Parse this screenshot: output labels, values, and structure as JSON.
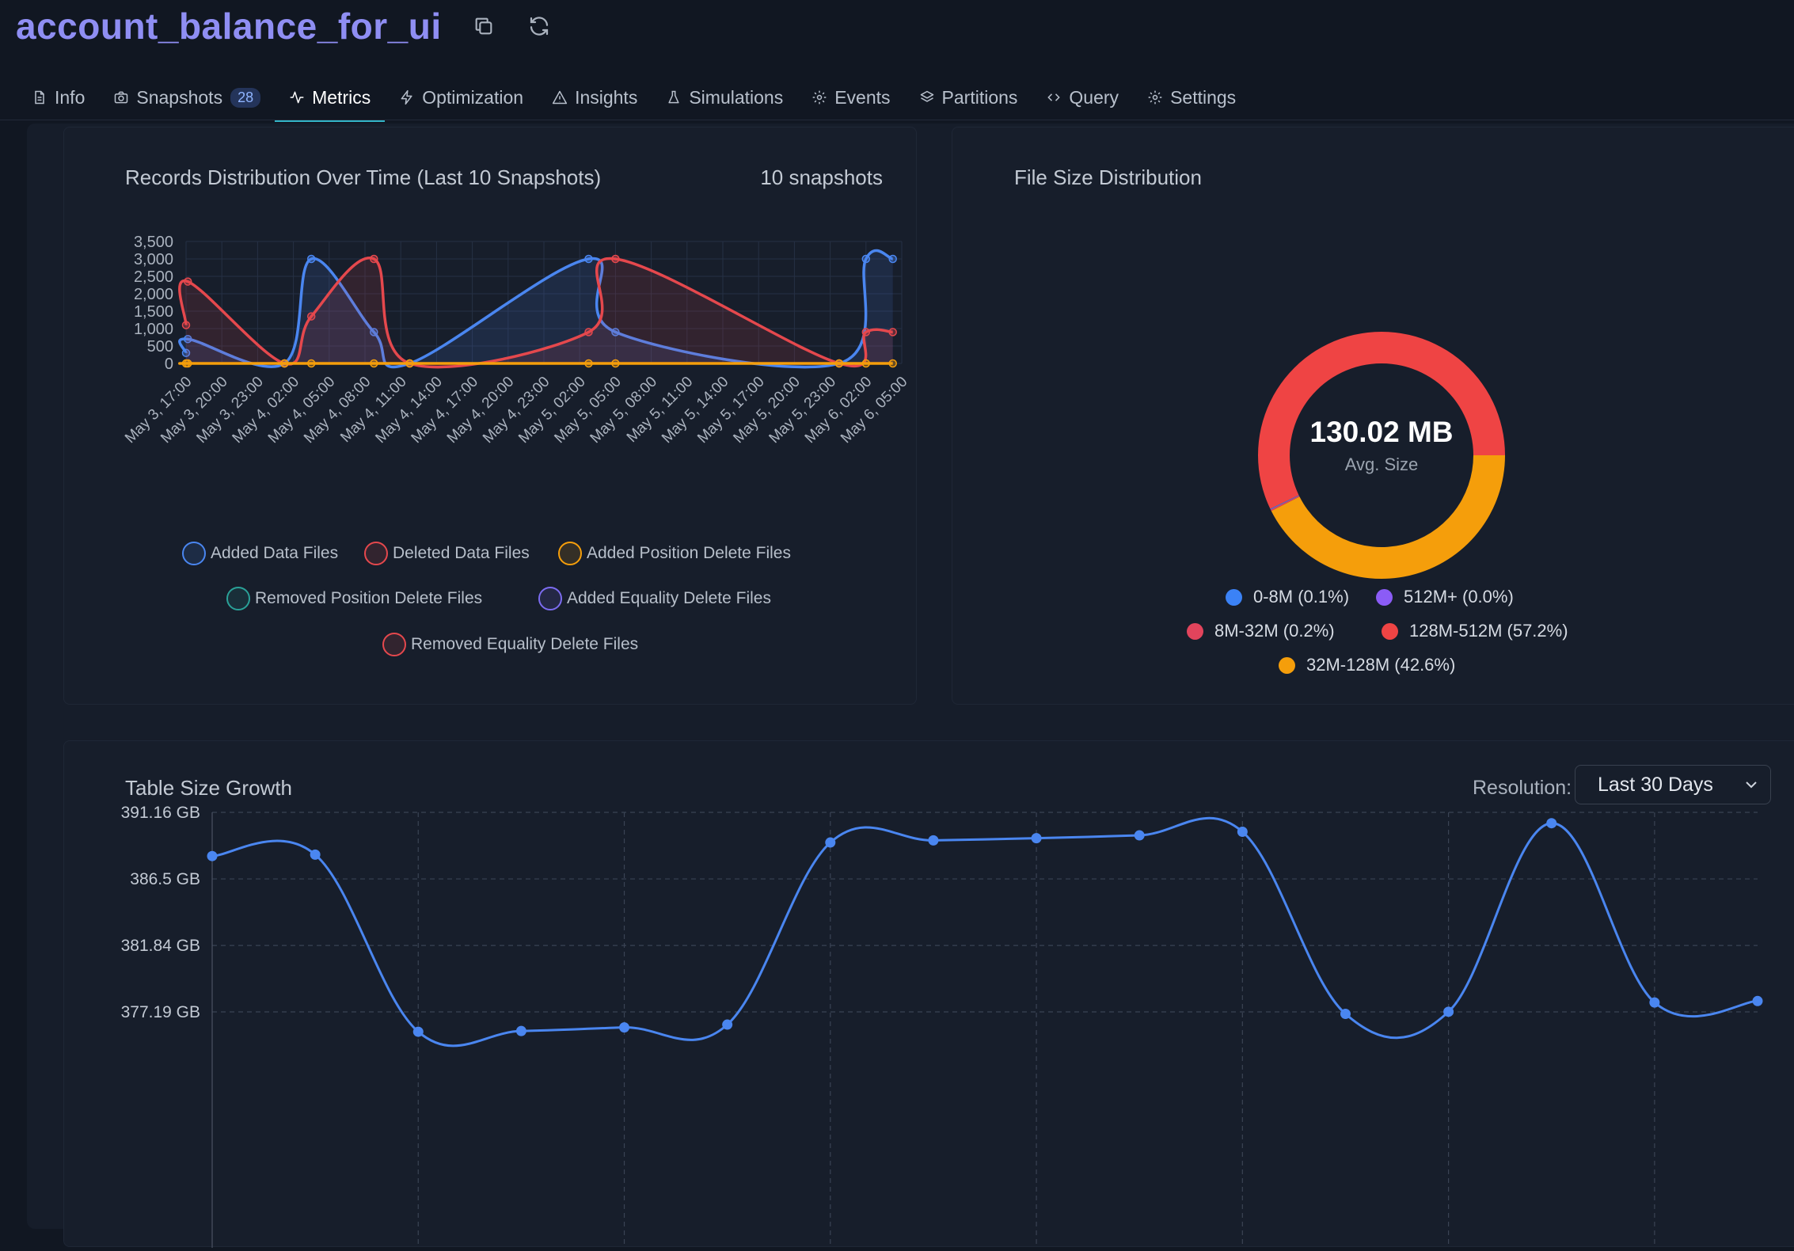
{
  "header": {
    "title": "account_balance_for_ui",
    "copy_icon": "copy-icon",
    "refresh_icon": "refresh-icon"
  },
  "tabs": [
    {
      "label": "Info",
      "icon": "document-icon"
    },
    {
      "label": "Snapshots",
      "icon": "camera-icon",
      "badge": "28"
    },
    {
      "label": "Metrics",
      "icon": "activity-icon",
      "active": true
    },
    {
      "label": "Optimization",
      "icon": "lightning-icon"
    },
    {
      "label": "Insights",
      "icon": "warning-icon"
    },
    {
      "label": "Simulations",
      "icon": "flask-icon"
    },
    {
      "label": "Events",
      "icon": "gear-icon"
    },
    {
      "label": "Partitions",
      "icon": "layers-icon"
    },
    {
      "label": "Query",
      "icon": "code-icon"
    },
    {
      "label": "Settings",
      "icon": "gear-icon"
    }
  ],
  "records_card": {
    "title": "Records Distribution Over Time (Last 10 Snapshots)",
    "meta": "10 snapshots"
  },
  "filesize_card": {
    "title": "File Size Distribution",
    "center_value": "130.02 MB",
    "center_label": "Avg. Size"
  },
  "growth_card": {
    "title": "Table Size Growth",
    "resolution_label": "Resolution:",
    "resolution_value": "Last 30 Days"
  },
  "colors": {
    "added_data": "#4a86f0",
    "deleted_data": "#e5484d",
    "added_position_delete": "#f59e0b",
    "removed_position_delete": "#2aa198",
    "added_equality_delete": "#7c6cf0",
    "removed_equality_delete": "#e5484d",
    "pie_0_8": "#3b82f6",
    "pie_512": "#8b5cf6",
    "pie_8_32": "#e2445c",
    "pie_128_512": "#ef4444",
    "pie_32_128": "#f59e0b",
    "growth_line": "#4a86f0"
  },
  "chart_data": [
    {
      "type": "line",
      "title": "Records Distribution Over Time (Last 10 Snapshots)",
      "x_tick_labels": [
        "May 3, 17:00",
        "May 3, 20:00",
        "May 3, 23:00",
        "May 4, 02:00",
        "May 4, 05:00",
        "May 4, 08:00",
        "May 4, 11:00",
        "May 4, 14:00",
        "May 4, 17:00",
        "May 4, 20:00",
        "May 4, 23:00",
        "May 5, 02:00",
        "May 5, 05:00",
        "May 5, 08:00",
        "May 5, 11:00",
        "May 5, 14:00",
        "May 5, 17:00",
        "May 5, 20:00",
        "May 5, 23:00",
        "May 6, 02:00",
        "May 6, 05:00"
      ],
      "y_ticks": [
        "0",
        "500",
        "1,000",
        "1,500",
        "2,000",
        "2,500",
        "3,000",
        "3,500"
      ],
      "ylim": [
        0,
        3500
      ],
      "grid": true,
      "legend_position": "bottom",
      "x_hours": [
        0,
        0.2,
        11,
        14,
        21,
        25,
        45,
        48,
        73,
        76,
        79
      ],
      "series": [
        {
          "name": "Added Data Files",
          "color_key": "added_data",
          "fill": true,
          "values": [
            300,
            700,
            0,
            3000,
            900,
            0,
            3000,
            900,
            0,
            3000,
            3000
          ]
        },
        {
          "name": "Deleted Data Files",
          "color_key": "deleted_data",
          "fill": true,
          "values": [
            1100,
            2350,
            0,
            1350,
            3000,
            0,
            900,
            3000,
            0,
            900,
            900
          ]
        },
        {
          "name": "Added Position Delete Files",
          "color_key": "added_position_delete",
          "fill": false,
          "values": [
            0,
            0,
            0,
            0,
            0,
            0,
            0,
            0,
            0,
            0,
            0
          ]
        },
        {
          "name": "Removed Position Delete Files",
          "color_key": "removed_position_delete",
          "fill": false,
          "values": []
        },
        {
          "name": "Added Equality Delete Files",
          "color_key": "added_equality_delete",
          "fill": false,
          "values": []
        },
        {
          "name": "Removed Equality Delete Files",
          "color_key": "removed_equality_delete",
          "fill": false,
          "values": []
        }
      ]
    },
    {
      "type": "pie",
      "title": "File Size Distribution",
      "slices": [
        {
          "label": "0-8M (0.1%)",
          "value": 0.1,
          "color_key": "pie_0_8"
        },
        {
          "label": "512M+ (0.0%)",
          "value": 0.0,
          "color_key": "pie_512"
        },
        {
          "label": "8M-32M (0.2%)",
          "value": 0.2,
          "color_key": "pie_8_32"
        },
        {
          "label": "128M-512M (57.2%)",
          "value": 57.2,
          "color_key": "pie_128_512"
        },
        {
          "label": "32M-128M (42.6%)",
          "value": 42.6,
          "color_key": "pie_32_128"
        }
      ]
    },
    {
      "type": "line",
      "title": "Table Size Growth",
      "y_ticks": [
        "377.19 GB",
        "381.84 GB",
        "386.5 GB",
        "391.16 GB"
      ],
      "ylim": [
        375,
        391.16
      ],
      "grid": true,
      "series": [
        {
          "name": "Table Size",
          "color_key": "growth_line",
          "values": [
            388.1,
            388.2,
            375.8,
            375.85,
            376.1,
            376.3,
            389.05,
            389.2,
            389.35,
            389.55,
            389.8,
            377.05,
            377.2,
            390.4,
            377.85,
            377.95
          ]
        }
      ]
    }
  ]
}
